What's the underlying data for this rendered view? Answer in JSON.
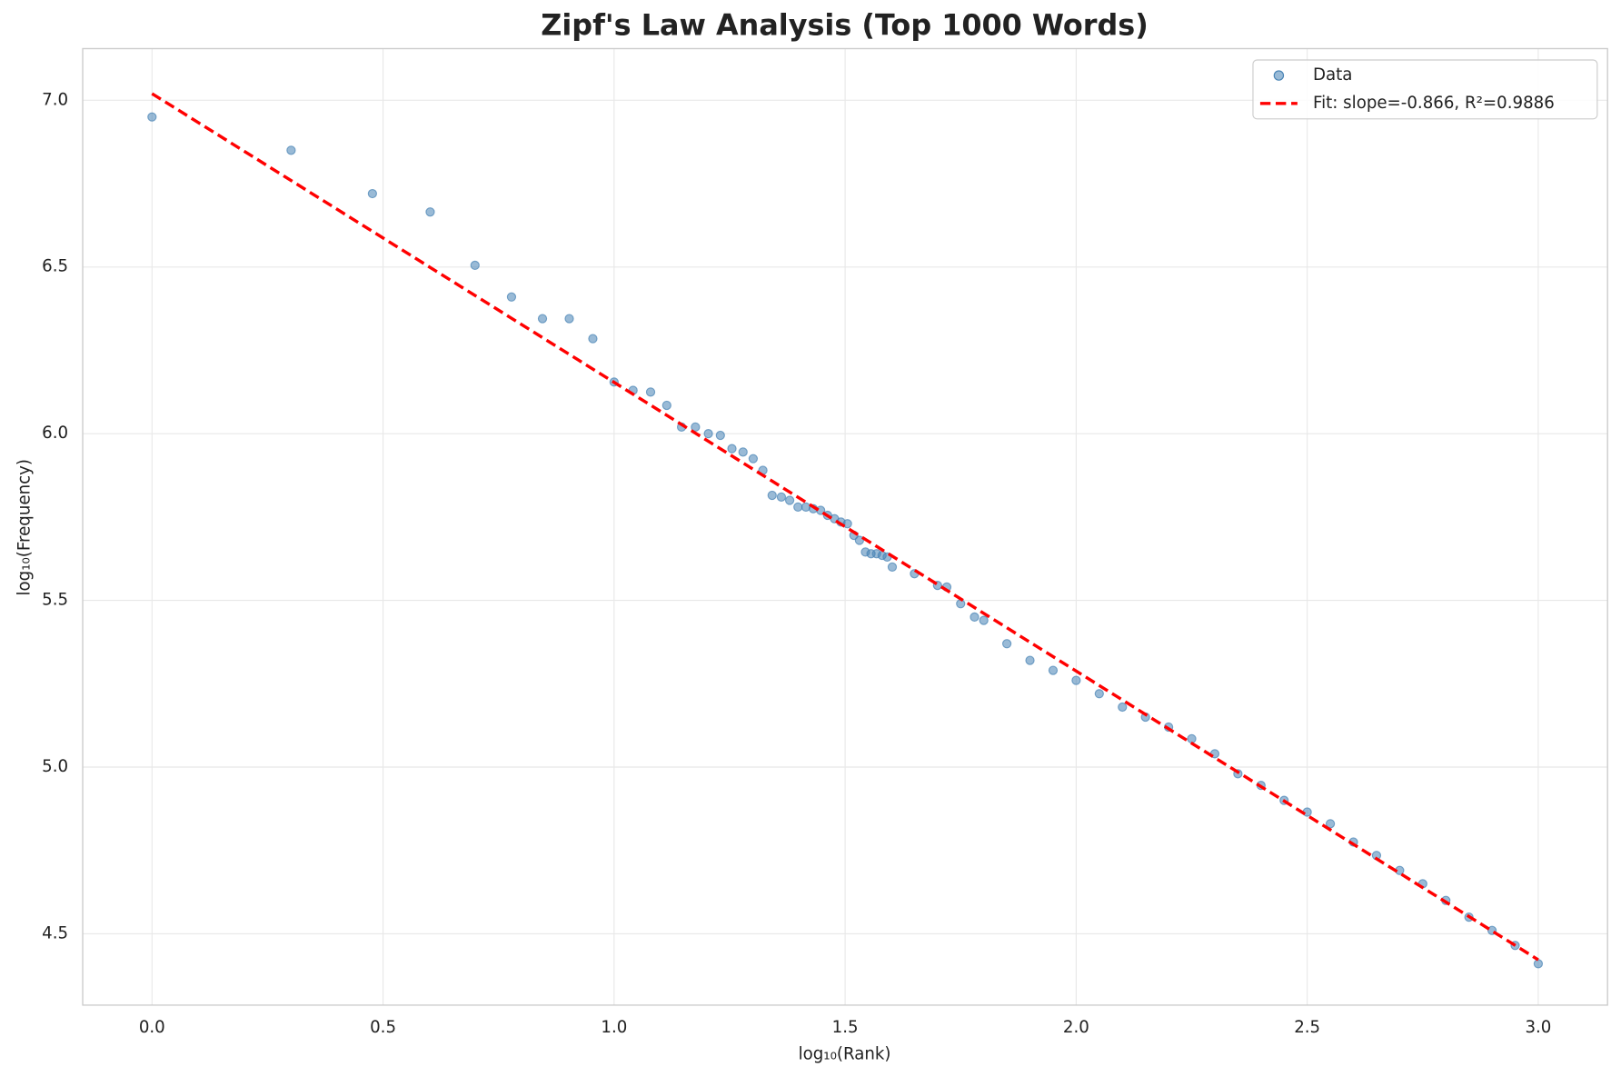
{
  "chart_data": {
    "type": "scatter",
    "title": "Zipf's Law Analysis (Top 1000 Words)",
    "x_label": "log₁₀(Rank)",
    "y_label": "log₁₀(Frequency)",
    "xlim": [
      -0.15,
      3.15
    ],
    "ylim": [
      4.286,
      7.155
    ],
    "xticks": [
      {
        "value": 0,
        "label": "0.0"
      },
      0.5,
      {
        "value": 1,
        "label": "1.0"
      },
      1.5,
      {
        "value": 2,
        "label": "2.0"
      },
      2.5,
      {
        "value": 3,
        "label": "3.0"
      }
    ],
    "yticks": [
      4.5,
      {
        "value": 5,
        "label": "5.0"
      },
      5.5,
      {
        "value": 6,
        "label": "6.0"
      },
      6.5,
      {
        "value": 7,
        "label": "7.0"
      }
    ],
    "grid": true,
    "legend": "upper right",
    "series": [
      {
        "name": "Data",
        "type": "scatter",
        "color": "#4682b4",
        "x": [
          0,
          0.301,
          0.477,
          0.602,
          0.699,
          0.778,
          0.845,
          0.903,
          0.954,
          1.0,
          1.041,
          1.079,
          1.114,
          1.146,
          1.176,
          1.204,
          1.23,
          1.255,
          1.279,
          1.301,
          1.322,
          1.342,
          1.362,
          1.38,
          1.398,
          1.415,
          1.431,
          1.447,
          1.462,
          1.477,
          1.491,
          1.505,
          1.519,
          1.531,
          1.544,
          1.556,
          1.568,
          1.58,
          1.591,
          1.602,
          1.65,
          1.7,
          1.72,
          1.75,
          1.78,
          1.8,
          1.85,
          1.9,
          1.95,
          2.0,
          2.05,
          2.1,
          2.15,
          2.2,
          2.25,
          2.3,
          2.35,
          2.4,
          2.45,
          2.5,
          2.55,
          2.6,
          2.65,
          2.7,
          2.75,
          2.8,
          2.85,
          2.9,
          2.95,
          3.0
        ],
        "values": [
          6.95,
          6.85,
          6.72,
          6.665,
          6.505,
          6.41,
          6.345,
          6.345,
          6.285,
          6.155,
          6.13,
          6.125,
          6.085,
          6.02,
          6.02,
          6.0,
          5.995,
          5.955,
          5.945,
          5.925,
          5.89,
          5.815,
          5.81,
          5.8,
          5.78,
          5.78,
          5.775,
          5.77,
          5.755,
          5.745,
          5.735,
          5.73,
          5.695,
          5.68,
          5.645,
          5.64,
          5.64,
          5.635,
          5.63,
          5.6,
          5.58,
          5.545,
          5.54,
          5.49,
          5.45,
          5.44,
          5.37,
          5.32,
          5.29,
          5.26,
          5.22,
          5.18,
          5.15,
          5.12,
          5.085,
          5.04,
          4.98,
          4.945,
          4.9,
          4.865,
          4.83,
          4.775,
          4.735,
          4.69,
          4.65,
          4.6,
          4.55,
          4.51,
          4.465,
          4.41
        ]
      },
      {
        "name": "Fit: slope=-0.866, R²=0.9886",
        "type": "line",
        "line_style": "dashed",
        "color": "#ff0000",
        "x": [
          0,
          3
        ],
        "values": [
          7.02,
          4.422
        ]
      }
    ]
  }
}
